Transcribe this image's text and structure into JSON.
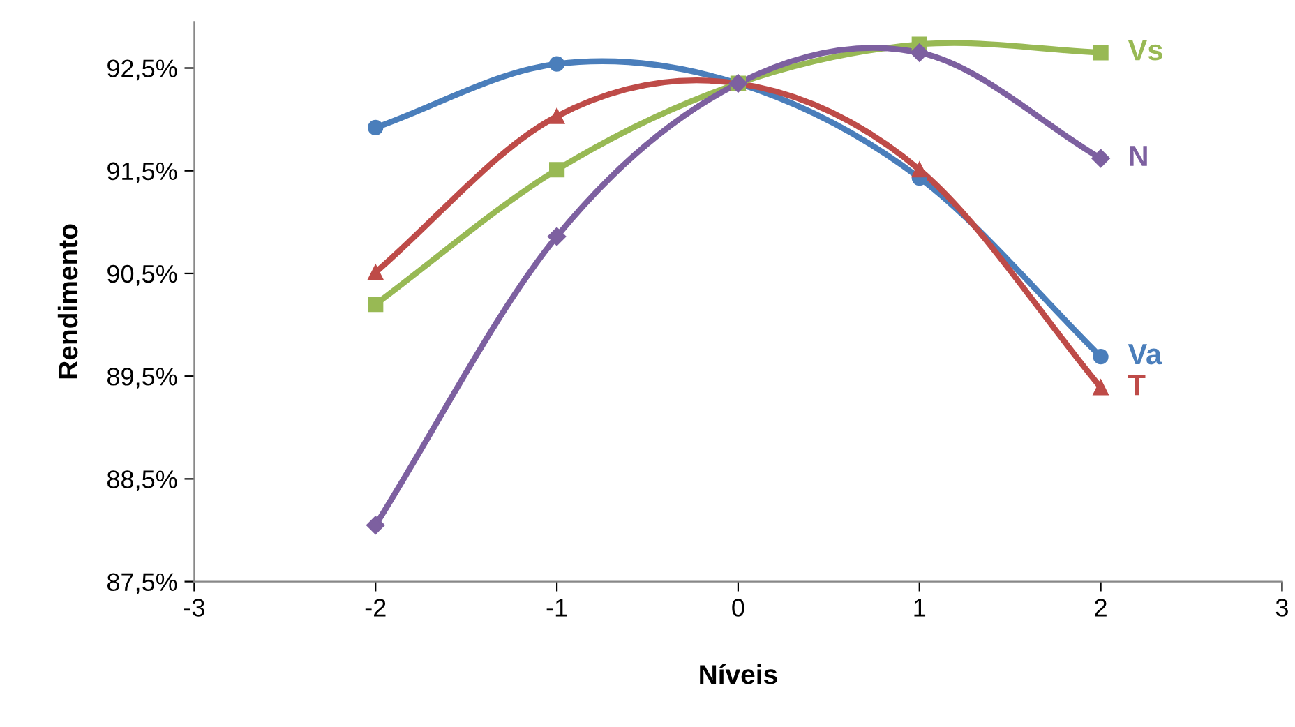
{
  "chart_data": {
    "type": "line",
    "xlabel": "Níveis",
    "ylabel": "Rendimento",
    "x": [
      -2,
      -1,
      0,
      1,
      2
    ],
    "series": [
      {
        "name": "Va",
        "color": "#4a7ebb",
        "marker": "circle",
        "values": [
          91.92,
          92.54,
          92.35,
          91.43,
          89.69
        ]
      },
      {
        "name": "T",
        "color": "#be4b48",
        "marker": "triangle",
        "values": [
          90.51,
          92.03,
          92.35,
          91.51,
          89.39
        ]
      },
      {
        "name": "Vs",
        "color": "#98b954",
        "marker": "square",
        "values": [
          90.2,
          91.51,
          92.35,
          92.73,
          92.65
        ]
      },
      {
        "name": "N",
        "color": "#7d60a0",
        "marker": "diamond",
        "values": [
          88.05,
          90.86,
          92.35,
          92.65,
          91.62
        ]
      }
    ],
    "xlim": [
      -3,
      3
    ],
    "xticks": [
      -3,
      -2,
      -1,
      0,
      1,
      2,
      3
    ],
    "ylim": [
      87.5,
      92.95
    ],
    "yticks": [
      {
        "value": 87.5,
        "label": "87,5%"
      },
      {
        "value": 88.5,
        "label": "88,5%"
      },
      {
        "value": 89.5,
        "label": "89,5%"
      },
      {
        "value": 90.5,
        "label": "90,5%"
      },
      {
        "value": 91.5,
        "label": "91,5%"
      },
      {
        "value": 92.5,
        "label": "92,5%"
      }
    ],
    "grid": false,
    "legend": false
  }
}
